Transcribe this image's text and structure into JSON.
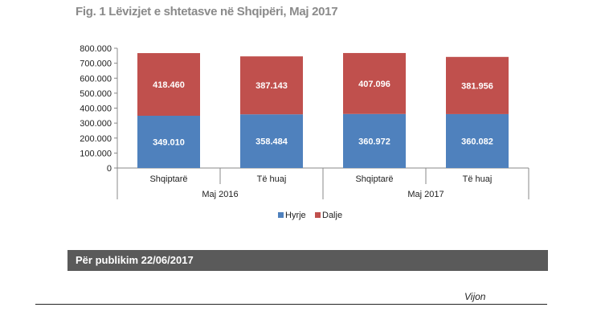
{
  "figure_title": "Fig. 1 Lëvizjet e shtetasve në Shqipëri, Maj 2017",
  "publication_label": "Për publikim 22/06/2017",
  "continuation_label": "Vijon",
  "colors": {
    "Hyrje": "#4f81bd",
    "Dalje": "#c0504d",
    "banner": "#5a5a5a"
  },
  "chart_data": {
    "type": "bar",
    "stacked": true,
    "categories": [
      "Shqiptarë",
      "Të huaj",
      "Shqiptarë",
      "Të huaj"
    ],
    "category_groups": [
      {
        "label": "Maj 2016",
        "span": 2
      },
      {
        "label": "Maj 2017",
        "span": 2
      }
    ],
    "series": [
      {
        "name": "Hyrje",
        "values": [
          349010,
          358484,
          360972,
          360082
        ],
        "labels": [
          "349.010",
          "358.484",
          "360.972",
          "360.082"
        ]
      },
      {
        "name": "Dalje",
        "values": [
          418460,
          387143,
          407096,
          381956
        ],
        "labels": [
          "418.460",
          "387.143",
          "407.096",
          "381.956"
        ]
      }
    ],
    "yticks": [
      "0",
      "100.000",
      "200.000",
      "300.000",
      "400.000",
      "500.000",
      "600.000",
      "700.000",
      "800.000"
    ],
    "ylim": [
      0,
      800000
    ],
    "grid": false,
    "legend_position": "bottom"
  }
}
